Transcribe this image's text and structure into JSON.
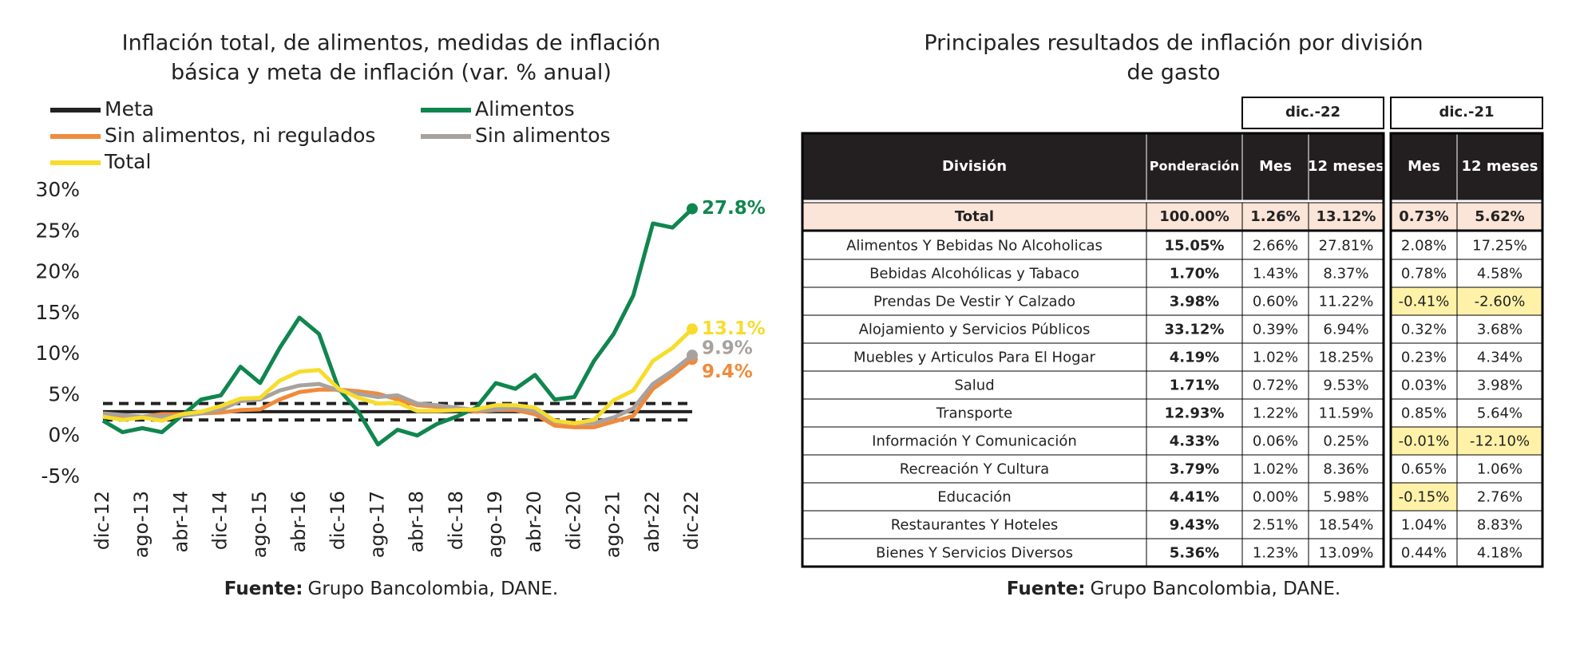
{
  "chart_data": {
    "type": "line",
    "title": [
      "Inflación total, de alimentos, medidas de inflación",
      "básica y meta de inflación (var. % anual)"
    ],
    "categories": [
      "dic-12",
      null,
      "ago-13",
      null,
      "abr-14",
      null,
      "dic-14",
      null,
      "ago-15",
      null,
      "abr-16",
      null,
      "dic-16",
      null,
      "ago-17",
      null,
      "abr-18",
      null,
      "dic-18",
      null,
      "ago-19",
      null,
      "abr-20",
      null,
      "dic-20",
      null,
      "ago-21",
      null,
      "abr-22",
      null,
      "dic-22"
    ],
    "series": [
      {
        "name": "Meta",
        "color": "#222222",
        "values": [
          3,
          3,
          3,
          3,
          3,
          3,
          3,
          3,
          3,
          3,
          3,
          3,
          3,
          3,
          3,
          3,
          3,
          3,
          3,
          3,
          3,
          3,
          3,
          3,
          3,
          3,
          3,
          3,
          3,
          3,
          3
        ]
      },
      {
        "name": "Alimentos",
        "color": "#10864f",
        "end_label": "27.8%",
        "values": [
          1.9,
          0.5,
          1.0,
          0.5,
          2.5,
          4.5,
          5.0,
          8.5,
          6.5,
          10.8,
          14.5,
          12.5,
          5.8,
          3.0,
          -1.0,
          0.8,
          0.1,
          1.5,
          2.4,
          3.5,
          6.5,
          5.8,
          7.5,
          4.5,
          4.8,
          9.2,
          12.5,
          17.2,
          26.0,
          25.5,
          27.8
        ]
      },
      {
        "name": "Sin alimentos, ni regulados",
        "color": "#f08a3c",
        "end_label": "9.4%",
        "values": [
          2.6,
          2.4,
          2.4,
          2.7,
          2.7,
          2.8,
          2.9,
          3.2,
          3.3,
          4.5,
          5.4,
          5.7,
          5.7,
          5.5,
          5.2,
          4.5,
          3.8,
          3.6,
          3.5,
          3.0,
          3.2,
          3.2,
          2.7,
          1.3,
          1.1,
          1.1,
          1.8,
          2.5,
          5.8,
          7.5,
          9.4
        ]
      },
      {
        "name": "Sin alimentos",
        "color": "#a8a29e",
        "end_label": "9.9%",
        "values": [
          2.8,
          2.6,
          2.4,
          2.4,
          2.5,
          2.8,
          3.3,
          4.3,
          4.5,
          5.6,
          6.2,
          6.4,
          5.6,
          5.2,
          4.8,
          5.0,
          4.0,
          3.8,
          3.5,
          3.2,
          3.3,
          3.5,
          3.1,
          1.8,
          1.6,
          1.6,
          2.3,
          3.4,
          6.4,
          8.0,
          9.9
        ]
      },
      {
        "name": "Total",
        "color": "#f7dc2c",
        "end_label": "13.1%",
        "values": [
          2.4,
          2.0,
          2.3,
          1.9,
          2.7,
          3.0,
          3.7,
          4.6,
          4.7,
          6.8,
          7.9,
          8.1,
          5.8,
          4.7,
          4.0,
          4.1,
          3.1,
          3.1,
          3.2,
          3.3,
          3.8,
          3.8,
          3.5,
          1.9,
          1.6,
          2.0,
          4.4,
          5.6,
          9.2,
          10.8,
          13.1
        ]
      }
    ],
    "meta_band": [
      2,
      4
    ],
    "ylim": [
      -5,
      30
    ],
    "yticks": [
      {
        "value": -5,
        "label": "-5%"
      },
      {
        "value": 0,
        "label": "0%"
      },
      {
        "value": 5,
        "label": "5%"
      },
      {
        "value": 10,
        "label": "10%"
      },
      {
        "value": 15,
        "label": "15%"
      },
      {
        "value": 20,
        "label": "20%"
      },
      {
        "value": 25,
        "label": "25%"
      },
      {
        "value": 30,
        "label": "30%"
      }
    ],
    "grid": false,
    "source_label": "Fuente:",
    "source": "Grupo Bancolombia, DANE."
  },
  "table": {
    "title": [
      "Principales resultados de inflación por división",
      "de gasto"
    ],
    "groups": [
      "dic.-22",
      "dic.-21"
    ],
    "header": [
      "División",
      "Ponderación",
      "Mes",
      "12 meses",
      "Mes",
      "12 meses"
    ],
    "rows": [
      [
        "Total",
        "100.00%",
        "1.26%",
        "13.12%",
        "0.73%",
        "5.62%"
      ],
      [
        "Alimentos Y Bebidas No Alcoholicas",
        "15.05%",
        "2.66%",
        "27.81%",
        "2.08%",
        "17.25%"
      ],
      [
        "Bebidas Alcohólicas y Tabaco",
        "1.70%",
        "1.43%",
        "8.37%",
        "0.78%",
        "4.58%"
      ],
      [
        "Prendas De Vestir Y Calzado",
        "3.98%",
        "0.60%",
        "11.22%",
        "-0.41%",
        "-2.60%"
      ],
      [
        "Alojamiento y Servicios Públicos",
        "33.12%",
        "0.39%",
        "6.94%",
        "0.32%",
        "3.68%"
      ],
      [
        "Muebles y Articulos Para El Hogar",
        "4.19%",
        "1.02%",
        "18.25%",
        "0.23%",
        "4.34%"
      ],
      [
        "Salud",
        "1.71%",
        "0.72%",
        "9.53%",
        "0.03%",
        "3.98%"
      ],
      [
        "Transporte",
        "12.93%",
        "1.22%",
        "11.59%",
        "0.85%",
        "5.64%"
      ],
      [
        "Información Y Comunicación",
        "4.33%",
        "0.06%",
        "0.25%",
        "-0.01%",
        "-12.10%"
      ],
      [
        "Recreación Y Cultura",
        "3.79%",
        "1.02%",
        "8.36%",
        "0.65%",
        "1.06%"
      ],
      [
        "Educación",
        "4.41%",
        "0.00%",
        "5.98%",
        "-0.15%",
        "2.76%"
      ],
      [
        "Restaurantes Y Hoteles",
        "9.43%",
        "2.51%",
        "18.54%",
        "1.04%",
        "8.83%"
      ],
      [
        "Bienes Y Servicios Diversos",
        "5.36%",
        "1.23%",
        "13.09%",
        "0.44%",
        "4.18%"
      ]
    ],
    "source_label": "Fuente:",
    "source": "Grupo Bancolombia, DANE."
  }
}
